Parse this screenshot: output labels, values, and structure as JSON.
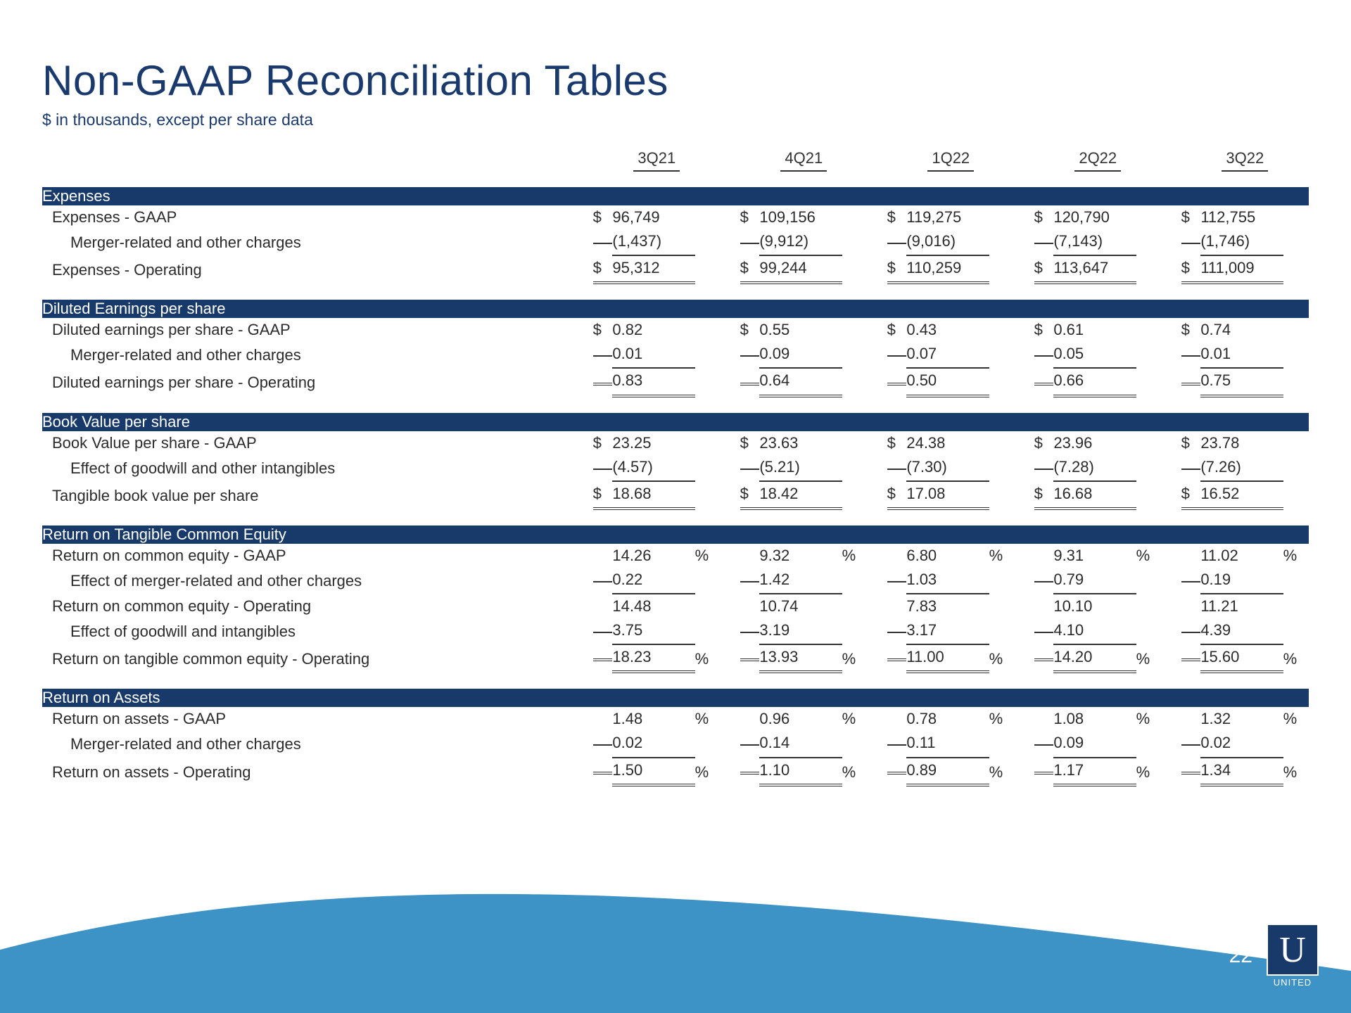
{
  "title": "Non-GAAP Reconciliation Tables",
  "subtitle": "$ in thousands, except per share data",
  "page_number": "22",
  "logo_letter": "U",
  "logo_text": "UNITED",
  "colors": {
    "heading": "#1a3a6e",
    "section_bg": "#183a6a",
    "wave": "#3d92c6",
    "text": "#2b2b2b",
    "border": "#333333"
  },
  "periods": [
    "3Q21",
    "4Q21",
    "1Q22",
    "2Q22",
    "3Q22"
  ],
  "sections": [
    {
      "title": "Expenses",
      "rows": [
        {
          "label": "Expenses - GAAP",
          "indent": 0,
          "sym": "$",
          "vals": [
            "96,749",
            "109,156",
            "119,275",
            "120,790",
            "112,755"
          ],
          "pct": false,
          "border": "none"
        },
        {
          "label": "Merger-related and other charges",
          "indent": 1,
          "sym": "",
          "vals": [
            "(1,437)",
            "(9,912)",
            "(9,016)",
            "(7,143)",
            "(1,746)"
          ],
          "pct": false,
          "border": "single"
        },
        {
          "label": "Expenses - Operating",
          "indent": 0,
          "sym": "$",
          "vals": [
            "95,312",
            "99,244",
            "110,259",
            "113,647",
            "111,009"
          ],
          "pct": false,
          "border": "double"
        }
      ]
    },
    {
      "title": "Diluted Earnings per share",
      "rows": [
        {
          "label": "Diluted earnings per share - GAAP",
          "indent": 0,
          "sym": "$",
          "vals": [
            "0.82",
            "0.55",
            "0.43",
            "0.61",
            "0.74"
          ],
          "pct": false,
          "border": "none"
        },
        {
          "label": "Merger-related and other charges",
          "indent": 1,
          "sym": "",
          "vals": [
            "0.01",
            "0.09",
            "0.07",
            "0.05",
            "0.01"
          ],
          "pct": false,
          "border": "single"
        },
        {
          "label": "Diluted earnings per share - Operating",
          "indent": 0,
          "sym": "",
          "vals": [
            "0.83",
            "0.64",
            "0.50",
            "0.66",
            "0.75"
          ],
          "pct": false,
          "border": "double"
        }
      ]
    },
    {
      "title": "Book Value per share",
      "rows": [
        {
          "label": "Book Value per share - GAAP",
          "indent": 0,
          "sym": "$",
          "vals": [
            "23.25",
            "23.63",
            "24.38",
            "23.96",
            "23.78"
          ],
          "pct": false,
          "border": "none"
        },
        {
          "label": "Effect of goodwill and other intangibles",
          "indent": 1,
          "sym": "",
          "vals": [
            "(4.57)",
            "(5.21)",
            "(7.30)",
            "(7.28)",
            "(7.26)"
          ],
          "pct": false,
          "border": "single"
        },
        {
          "label": "Tangible book value per share",
          "indent": 0,
          "sym": "$",
          "vals": [
            "18.68",
            "18.42",
            "17.08",
            "16.68",
            "16.52"
          ],
          "pct": false,
          "border": "double"
        }
      ]
    },
    {
      "title": "Return on Tangible Common Equity",
      "rows": [
        {
          "label": "Return on common equity - GAAP",
          "indent": 0,
          "sym": "",
          "vals": [
            "14.26",
            "9.32",
            "6.80",
            "9.31",
            "11.02"
          ],
          "pct": true,
          "border": "none"
        },
        {
          "label": "Effect of merger-related and other charges",
          "indent": 1,
          "sym": "",
          "vals": [
            "0.22",
            "1.42",
            "1.03",
            "0.79",
            "0.19"
          ],
          "pct": false,
          "border": "single"
        },
        {
          "label": "Return on common equity - Operating",
          "indent": 0,
          "sym": "",
          "vals": [
            "14.48",
            "10.74",
            "7.83",
            "10.10",
            "11.21"
          ],
          "pct": false,
          "border": "none"
        },
        {
          "label": "Effect of goodwill and intangibles",
          "indent": 1,
          "sym": "",
          "vals": [
            "3.75",
            "3.19",
            "3.17",
            "4.10",
            "4.39"
          ],
          "pct": false,
          "border": "single"
        },
        {
          "label": "Return on tangible common equity - Operating",
          "indent": 0,
          "sym": "",
          "vals": [
            "18.23",
            "13.93",
            "11.00",
            "14.20",
            "15.60"
          ],
          "pct": true,
          "border": "double"
        }
      ]
    },
    {
      "title": "Return on Assets",
      "rows": [
        {
          "label": "Return on assets - GAAP",
          "indent": 0,
          "sym": "",
          "vals": [
            "1.48",
            "0.96",
            "0.78",
            "1.08",
            "1.32"
          ],
          "pct": true,
          "border": "none"
        },
        {
          "label": "Merger-related and other charges",
          "indent": 1,
          "sym": "",
          "vals": [
            "0.02",
            "0.14",
            "0.11",
            "0.09",
            "0.02"
          ],
          "pct": false,
          "border": "single"
        },
        {
          "label": "Return on assets - Operating",
          "indent": 0,
          "sym": "",
          "vals": [
            "1.50",
            "1.10",
            "0.89",
            "1.17",
            "1.34"
          ],
          "pct": true,
          "border": "double"
        }
      ]
    }
  ]
}
